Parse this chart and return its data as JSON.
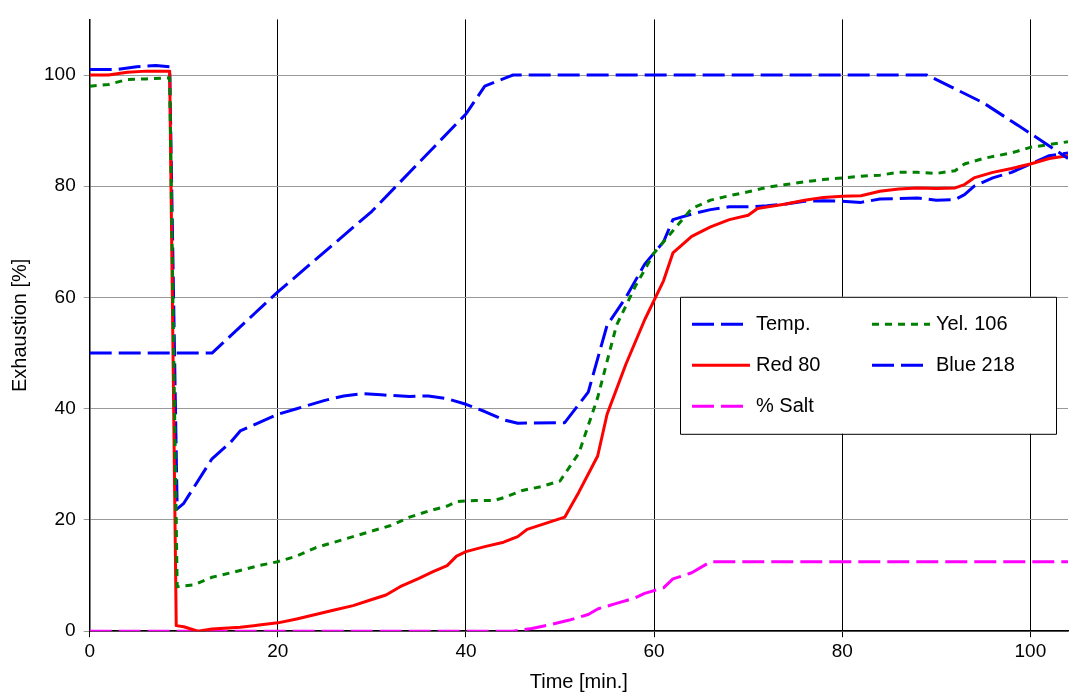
{
  "chart_data": {
    "type": "line",
    "xlabel": "Time [min.]",
    "ylabel": "Exhaustion [%]",
    "xlim": [
      0,
      104
    ],
    "xticks": [
      0,
      20,
      40,
      60,
      80,
      100
    ],
    "ylim": [
      0,
      110
    ],
    "yticks": [
      0,
      20,
      40,
      60,
      80,
      100
    ],
    "grid": true,
    "legend": "right",
    "marker": "none",
    "series": [
      {
        "name": "Temp.",
        "color": "#0000ff",
        "line_style": "dashed",
        "x": [
          0,
          13,
          20,
          30,
          40,
          42,
          45,
          89,
          95,
          100,
          104
        ],
        "values": [
          50,
          50,
          61,
          75.5,
          93,
          98,
          100,
          100,
          95,
          89.5,
          85
        ]
      },
      {
        "name": "Yel. 106",
        "color": "#008000",
        "line_style": "dotted",
        "x": [
          0,
          2,
          4,
          6,
          8.5,
          9.3,
          11,
          13,
          15,
          18,
          20,
          22,
          24,
          26,
          28,
          30,
          32,
          34,
          36,
          38,
          39,
          41,
          43,
          44,
          46,
          48,
          50,
          52,
          54,
          56,
          58,
          60,
          62,
          64,
          66,
          68,
          70,
          72,
          74,
          76,
          78,
          80,
          82,
          84,
          86,
          88,
          90,
          92,
          93,
          95,
          98,
          100,
          102,
          104
        ],
        "values": [
          98,
          98.3,
          99.2,
          99.3,
          99.5,
          8,
          8.3,
          9.7,
          10.5,
          11.8,
          12.5,
          13.5,
          15,
          16,
          17,
          18,
          19,
          20.5,
          21.6,
          22.5,
          23.3,
          23.5,
          23.5,
          24,
          25.3,
          26,
          27,
          32,
          42,
          55,
          62,
          68,
          72,
          76,
          77.5,
          78.3,
          79,
          79.8,
          80.3,
          80.8,
          81.2,
          81.5,
          81.8,
          82,
          82.5,
          82.5,
          82.3,
          82.8,
          84,
          85,
          86,
          87,
          87.5,
          88
        ]
      },
      {
        "name": "Red 80",
        "color": "#ff0000",
        "line_style": "solid",
        "x": [
          0,
          2,
          4,
          6,
          8.5,
          9.2,
          10,
          11.5,
          13,
          16,
          18,
          20,
          22,
          24,
          26,
          28,
          30,
          31.5,
          33,
          35,
          36.5,
          38,
          39,
          40,
          42,
          44,
          45.5,
          46.5,
          50.5,
          52,
          54,
          55,
          57,
          59,
          61,
          62,
          64,
          66,
          68,
          70,
          71,
          74,
          76,
          78,
          80,
          82,
          84,
          86,
          88,
          90,
          92,
          93,
          94,
          96,
          98,
          100,
          102,
          104
        ],
        "values": [
          100,
          100,
          100.5,
          100.7,
          100.7,
          1,
          0.8,
          0,
          0.4,
          0.7,
          1.1,
          1.5,
          2.2,
          3,
          3.8,
          4.6,
          5.7,
          6.5,
          8,
          9.5,
          10.7,
          11.8,
          13.5,
          14.3,
          15.2,
          16,
          17,
          18.3,
          20.5,
          25,
          31.5,
          39,
          48,
          56,
          63,
          68,
          71,
          72.7,
          74,
          74.8,
          76,
          76.8,
          77.5,
          78,
          78.2,
          78.3,
          79.1,
          79.5,
          79.7,
          79.6,
          79.7,
          80.3,
          81.5,
          82.5,
          83.2,
          84,
          85,
          85.5
        ]
      },
      {
        "name": "Blue 218",
        "color": "#0000ff",
        "line_style": "dashed",
        "x": [
          0,
          3,
          5,
          7,
          8.5,
          9.3,
          10,
          13,
          15,
          16,
          18,
          20,
          22,
          25,
          27,
          29,
          31,
          34,
          36,
          38,
          40,
          42,
          44,
          45.5,
          50.5,
          53,
          55,
          57,
          59,
          61,
          62,
          64,
          66,
          68,
          70,
          72,
          74,
          76,
          78,
          80,
          82,
          84,
          86,
          88,
          90,
          92,
          93,
          94,
          96,
          98,
          100,
          102,
          104
        ],
        "values": [
          101,
          101,
          101.5,
          101.7,
          101.5,
          22,
          23,
          31,
          34,
          36,
          37.5,
          39,
          40,
          41.5,
          42.3,
          42.7,
          42.5,
          42.2,
          42.3,
          41.8,
          40.8,
          39.5,
          38,
          37.4,
          37.5,
          43,
          55,
          60,
          66,
          70,
          74,
          75,
          75.8,
          76.3,
          76.3,
          76.5,
          76.8,
          77.3,
          77.4,
          77.3,
          77.1,
          77.7,
          77.8,
          77.9,
          77.5,
          77.6,
          78.5,
          80,
          81.5,
          82.5,
          84,
          85.5,
          86
        ]
      },
      {
        "name": "% Salt",
        "color": "#ff00ff",
        "line_style": "dashed",
        "x": [
          0,
          45,
          47,
          49,
          51,
          53,
          54,
          56,
          58,
          59,
          61,
          62,
          64,
          66,
          104
        ],
        "values": [
          0,
          0,
          0.5,
          1.2,
          2,
          3,
          4,
          5,
          6,
          6.8,
          7.8,
          9.4,
          10.5,
          12.5,
          12.5
        ]
      }
    ]
  }
}
